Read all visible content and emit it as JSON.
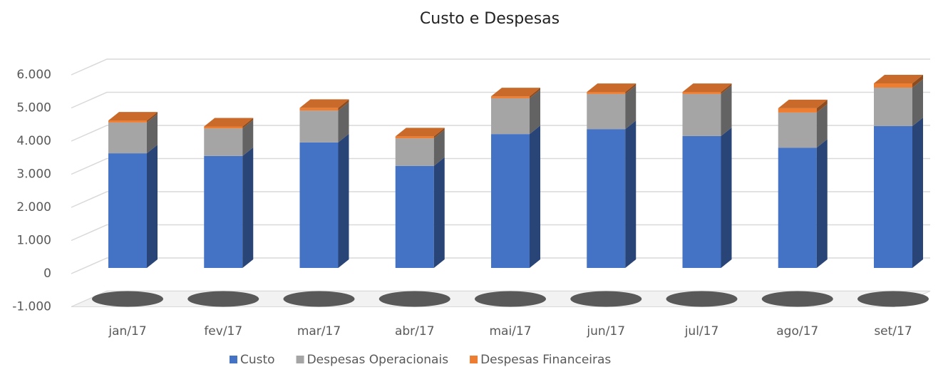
{
  "chart_data": {
    "type": "bar3d_stacked",
    "title": "Custo e Despesas",
    "categories": [
      "jan/17",
      "fev/17",
      "mar/17",
      "abr/17",
      "mai/17",
      "jun/17",
      "jul/17",
      "ago/17",
      "set/17"
    ],
    "series": [
      {
        "name": "Custo",
        "color": "#4472c4",
        "values": [
          3460,
          3380,
          3790,
          3080,
          4040,
          4190,
          3980,
          3630,
          4280
        ]
      },
      {
        "name": "Despesas Operacionais",
        "color": "#a5a5a5",
        "values": [
          930,
          830,
          960,
          830,
          1080,
          1060,
          1270,
          1060,
          1160
        ]
      },
      {
        "name": "Despesas Financeiras",
        "color": "#ed7d31",
        "values": [
          60,
          60,
          80,
          60,
          60,
          60,
          60,
          130,
          130
        ]
      }
    ],
    "ylim": [
      -1000,
      6000
    ],
    "yticks": [
      {
        "value": -1000,
        "label": "-1.000"
      },
      0,
      {
        "value": 1000,
        "label": "1.000"
      },
      {
        "value": 2000,
        "label": "2.000"
      },
      {
        "value": 3000,
        "label": "3.000"
      },
      {
        "value": 4000,
        "label": "4.000"
      },
      {
        "value": 5000,
        "label": "5.000"
      },
      {
        "value": 6000,
        "label": "6.000"
      }
    ],
    "grid": true,
    "legend": "bottom"
  }
}
